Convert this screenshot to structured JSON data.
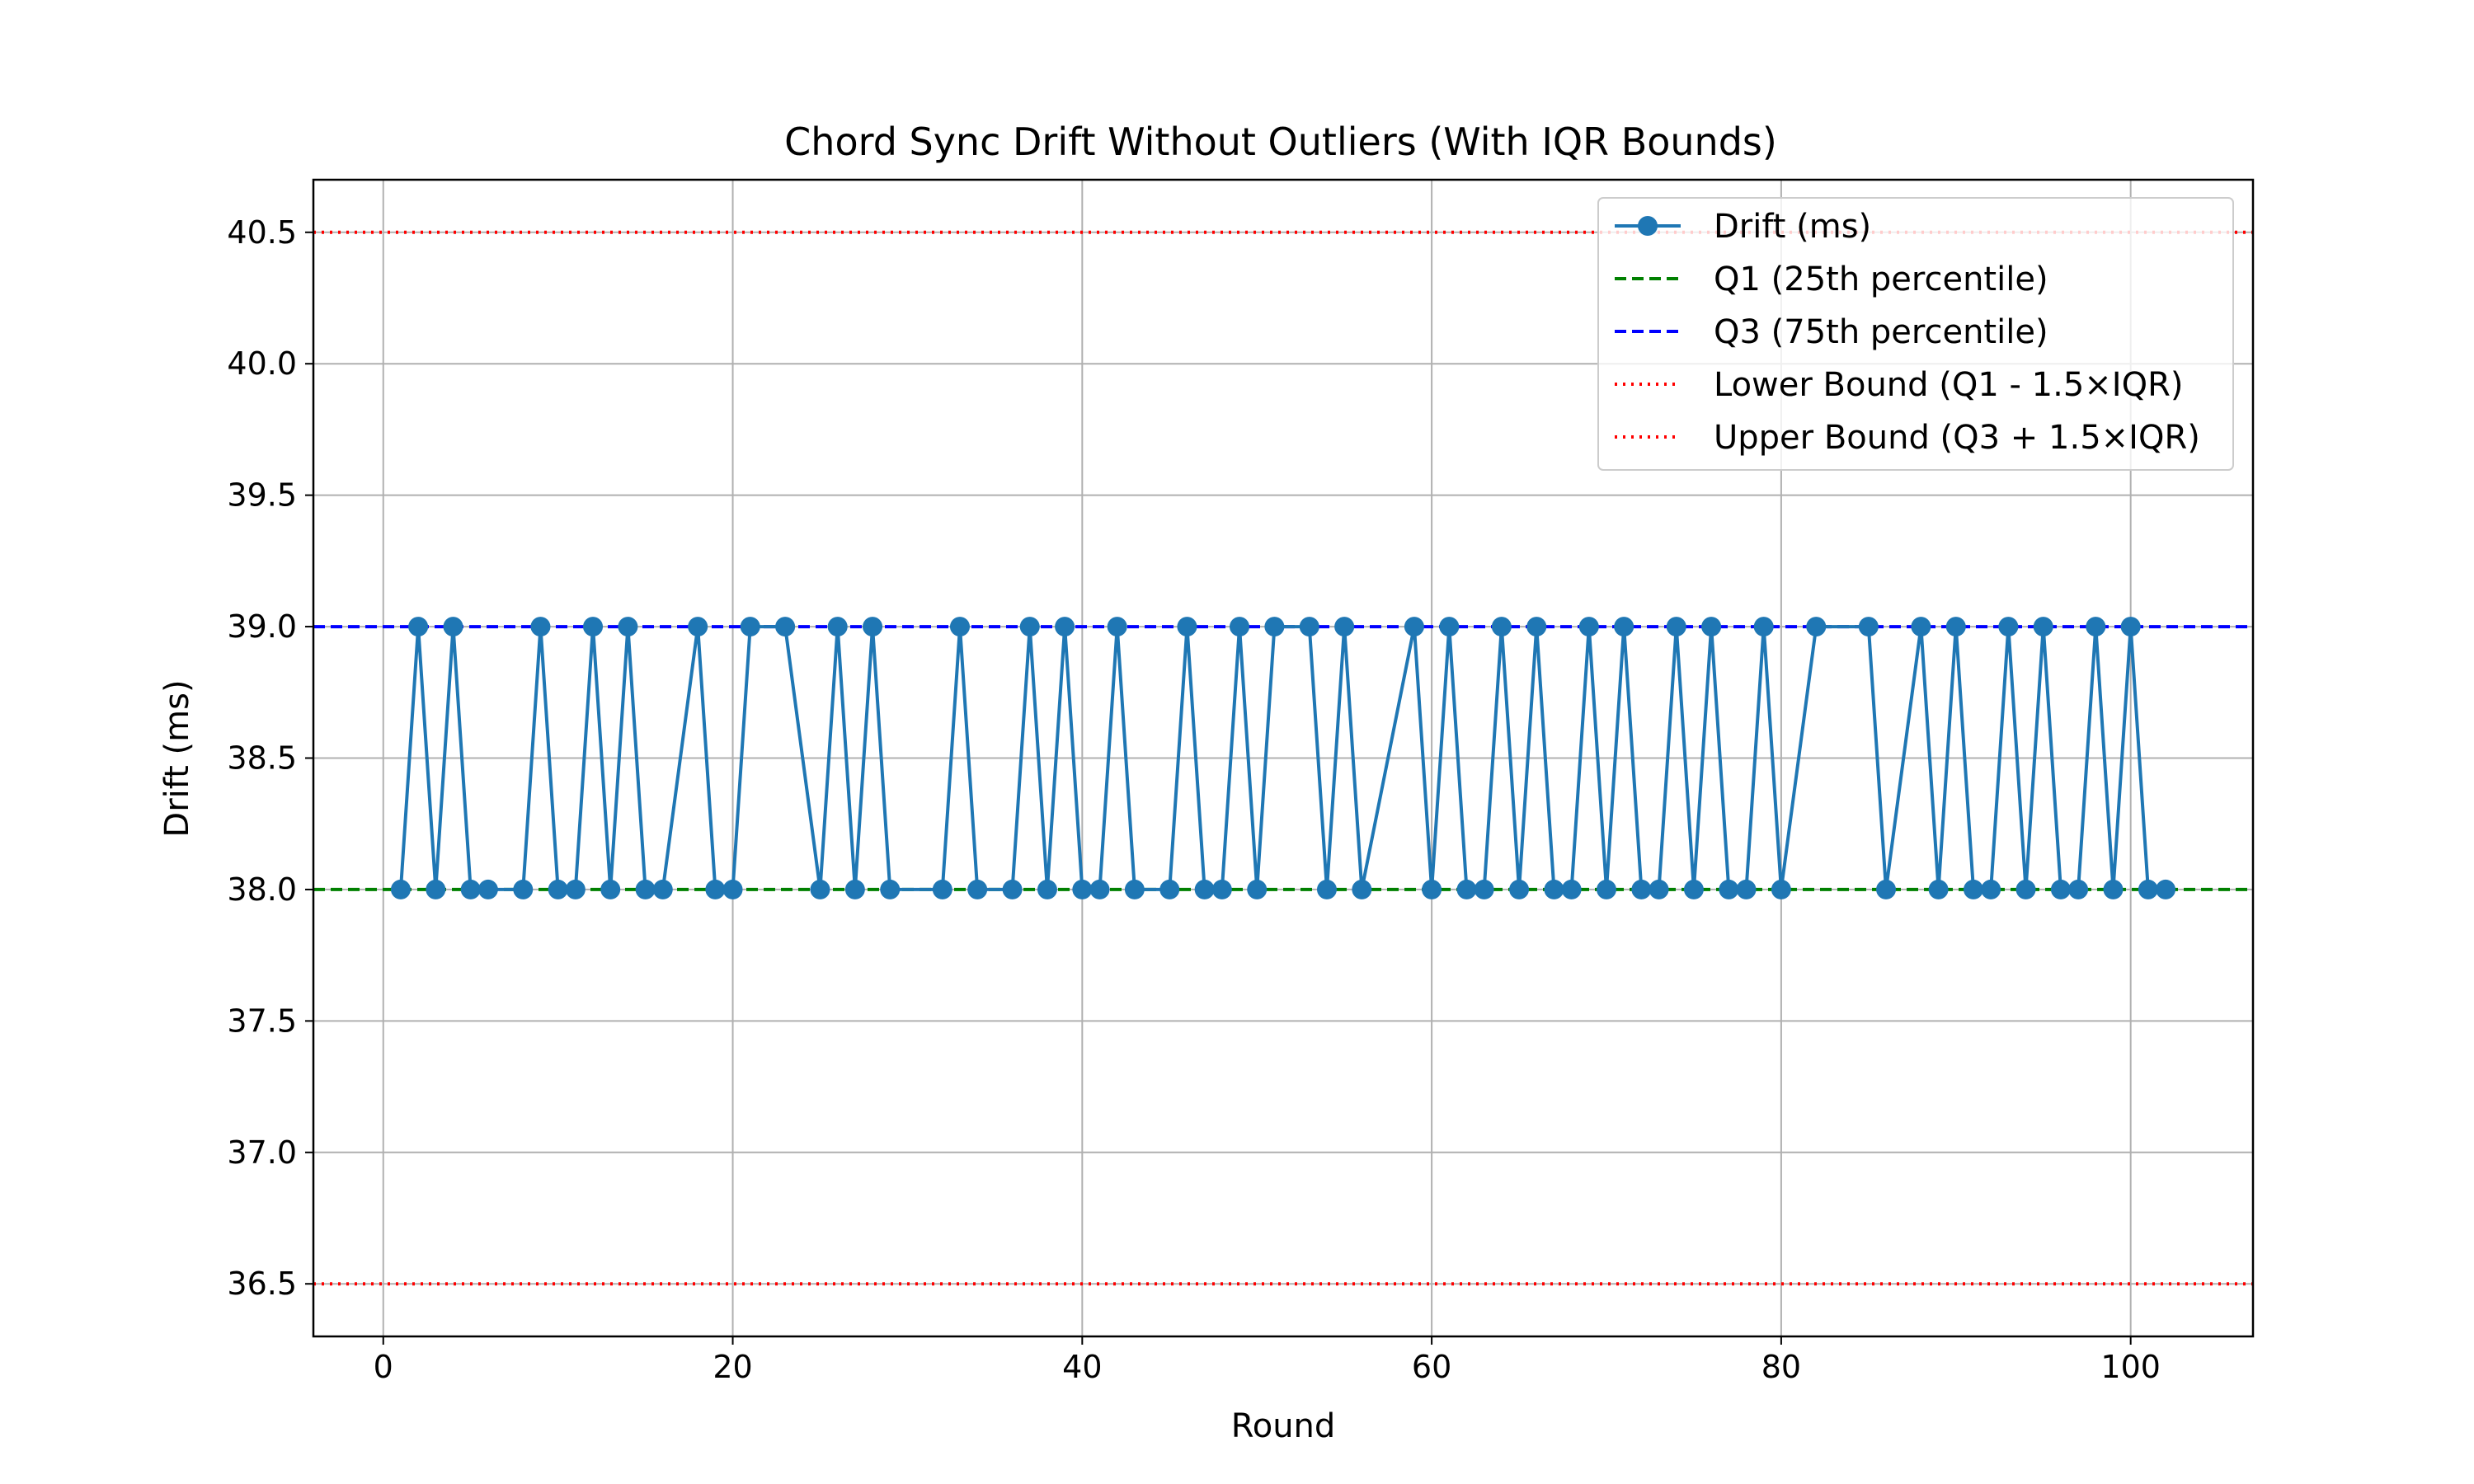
{
  "chart_data": {
    "type": "line",
    "title": "Chord Sync Drift Without Outliers (With IQR Bounds)",
    "xlabel": "Round",
    "ylabel": "Drift (ms)",
    "xlim": [
      -4,
      107
    ],
    "ylim": [
      36.3,
      40.7
    ],
    "xticks": [
      0,
      20,
      40,
      60,
      80,
      100
    ],
    "yticks": [
      36.5,
      37.0,
      37.5,
      38.0,
      38.5,
      39.0,
      39.5,
      40.0,
      40.5
    ],
    "grid": true,
    "legend_position": "top-right",
    "series": [
      {
        "name": "Drift (ms)",
        "color": "#1f77b4",
        "marker": "circle",
        "x": [
          1,
          2,
          3,
          4,
          5,
          6,
          8,
          9,
          10,
          11,
          12,
          13,
          14,
          15,
          16,
          18,
          19,
          20,
          21,
          23,
          25,
          26,
          27,
          28,
          29,
          32,
          33,
          34,
          36,
          37,
          38,
          39,
          40,
          41,
          42,
          43,
          45,
          46,
          47,
          48,
          49,
          50,
          51,
          53,
          54,
          55,
          56,
          59,
          60,
          61,
          62,
          63,
          64,
          65,
          66,
          67,
          68,
          69,
          70,
          71,
          72,
          73,
          74,
          75,
          76,
          77,
          78,
          79,
          80,
          82,
          85,
          86,
          88,
          89,
          90,
          91,
          92,
          93,
          94,
          95,
          96,
          97,
          98,
          99,
          100,
          101,
          102
        ],
        "y": [
          38,
          39,
          38,
          39,
          38,
          38,
          38,
          39,
          38,
          38,
          39,
          38,
          39,
          38,
          38,
          39,
          38,
          38,
          39,
          39,
          38,
          39,
          38,
          39,
          38,
          38,
          39,
          38,
          38,
          39,
          38,
          39,
          38,
          38,
          39,
          38,
          38,
          39,
          38,
          38,
          39,
          38,
          39,
          39,
          38,
          39,
          38,
          39,
          38,
          39,
          38,
          38,
          39,
          38,
          39,
          38,
          38,
          39,
          38,
          39,
          38,
          38,
          39,
          38,
          39,
          38,
          38,
          39,
          38,
          39,
          39,
          38,
          39,
          38,
          39,
          38,
          38,
          39,
          38,
          39,
          38,
          38,
          39,
          38,
          39,
          38,
          38
        ]
      }
    ],
    "reference_lines": [
      {
        "name": "Q1 (25th percentile)",
        "value": 38.0,
        "color": "#008000",
        "style": "dashed"
      },
      {
        "name": "Q3 (75th percentile)",
        "value": 39.0,
        "color": "#0000ff",
        "style": "dashed"
      },
      {
        "name": "Lower Bound (Q1 - 1.5×IQR)",
        "value": 36.5,
        "color": "#ff0000",
        "style": "dotted"
      },
      {
        "name": "Upper Bound (Q3 + 1.5×IQR)",
        "value": 40.5,
        "color": "#ff0000",
        "style": "dotted"
      }
    ]
  }
}
